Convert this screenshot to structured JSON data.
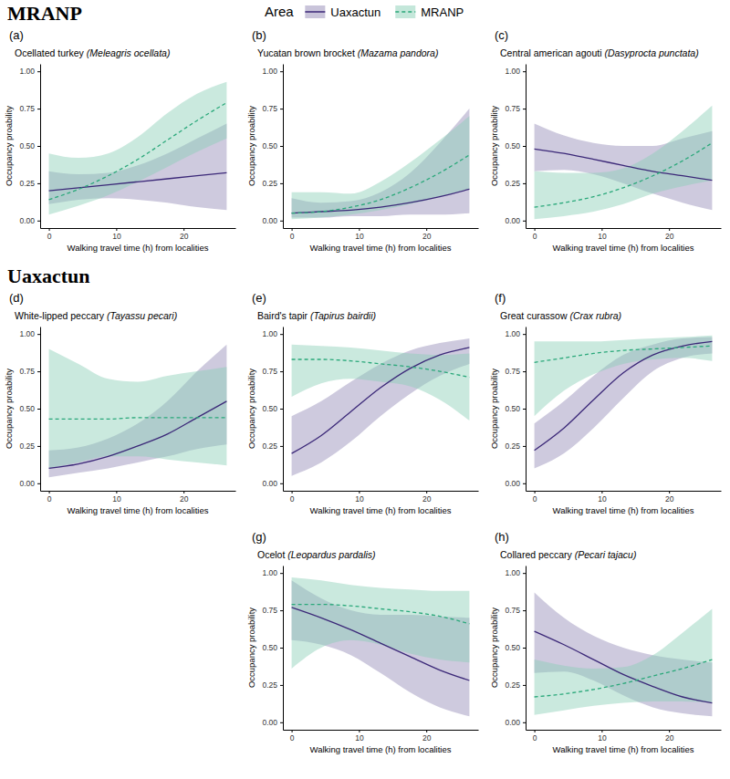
{
  "sections": [
    "MRANP",
    "Uaxactun"
  ],
  "legend_title": "Area",
  "chart_data": [
    {
      "type": "line",
      "panel_label": "(a)",
      "title": "Ocellated turkey (Meleagris ocellata)",
      "legend": "top",
      "x_label": "Walking travel time (h) from localities",
      "y_label": "Occupancy proability",
      "xlim": [
        -1.3,
        27.7
      ],
      "ylim": [
        -0.05,
        1.05
      ],
      "xticks": [
        0,
        10,
        20
      ],
      "yticks": [
        {
          "value": 0,
          "label": "0.00"
        },
        {
          "value": 0.25,
          "label": "0.25"
        },
        {
          "value": 0.5,
          "label": "0.50"
        },
        {
          "value": 0.75,
          "label": "0.75"
        },
        {
          "value": 1,
          "label": "1.00"
        }
      ],
      "grid": false,
      "x": [
        0,
        4.4,
        8.8,
        13.2,
        17.6,
        22,
        26.4
      ],
      "series": [
        {
          "name": "Uaxactun",
          "color": "#3b2878",
          "line_style": "solid",
          "values": [
            0.2,
            0.22,
            0.24,
            0.26,
            0.28,
            0.3,
            0.32
          ],
          "lower": [
            0.11,
            0.14,
            0.15,
            0.14,
            0.12,
            0.09,
            0.07
          ],
          "upper": [
            0.33,
            0.31,
            0.32,
            0.37,
            0.45,
            0.55,
            0.65
          ]
        },
        {
          "name": "MRANP",
          "color": "#2aa87a",
          "line_style": "dashed",
          "values": [
            0.14,
            0.21,
            0.3,
            0.41,
            0.54,
            0.67,
            0.79
          ],
          "lower": [
            0.04,
            0.1,
            0.17,
            0.26,
            0.36,
            0.46,
            0.55
          ],
          "upper": [
            0.45,
            0.42,
            0.45,
            0.56,
            0.72,
            0.85,
            0.93
          ]
        }
      ]
    },
    {
      "type": "line",
      "panel_label": "(b)",
      "title": "Yucatan brown brocket (Mazama pandora)",
      "x_label": "Walking travel time (h) from localities",
      "y_label": "Occupancy proability",
      "xlim": [
        -1.3,
        27.7
      ],
      "ylim": [
        -0.05,
        1.05
      ],
      "xticks": [
        0,
        10,
        20
      ],
      "yticks": [
        {
          "value": 0,
          "label": "0.00"
        },
        {
          "value": 0.25,
          "label": "0.25"
        },
        {
          "value": 0.5,
          "label": "0.50"
        },
        {
          "value": 0.75,
          "label": "0.75"
        },
        {
          "value": 1,
          "label": "1.00"
        }
      ],
      "grid": false,
      "x": [
        0,
        4.4,
        8.8,
        13.2,
        17.6,
        22,
        26.4
      ],
      "series": [
        {
          "name": "Uaxactun",
          "color": "#3b2878",
          "line_style": "solid",
          "values": [
            0.05,
            0.06,
            0.07,
            0.09,
            0.12,
            0.16,
            0.21
          ],
          "lower": [
            0.02,
            0.02,
            0.03,
            0.03,
            0.04,
            0.04,
            0.05
          ],
          "upper": [
            0.15,
            0.12,
            0.13,
            0.19,
            0.32,
            0.52,
            0.75
          ]
        },
        {
          "name": "MRANP",
          "color": "#2aa87a",
          "line_style": "dashed",
          "values": [
            0.05,
            0.06,
            0.09,
            0.14,
            0.22,
            0.32,
            0.44
          ],
          "lower": [
            0.01,
            0.02,
            0.04,
            0.07,
            0.11,
            0.16,
            0.21
          ],
          "upper": [
            0.19,
            0.19,
            0.18,
            0.26,
            0.39,
            0.54,
            0.7
          ]
        }
      ]
    },
    {
      "type": "line",
      "panel_label": "(c)",
      "title": "Central american agouti (Dasyprocta punctata)",
      "x_label": "Walking travel time (h) from localities",
      "y_label": "Occupancy proability",
      "xlim": [
        -1.3,
        27.7
      ],
      "ylim": [
        -0.05,
        1.05
      ],
      "xticks": [
        0,
        10,
        20
      ],
      "yticks": [
        {
          "value": 0,
          "label": "0.00"
        },
        {
          "value": 0.25,
          "label": "0.25"
        },
        {
          "value": 0.5,
          "label": "0.50"
        },
        {
          "value": 0.75,
          "label": "0.75"
        },
        {
          "value": 1,
          "label": "1.00"
        }
      ],
      "grid": false,
      "x": [
        0,
        4.4,
        8.8,
        13.2,
        17.6,
        22,
        26.4
      ],
      "series": [
        {
          "name": "Uaxactun",
          "color": "#3b2878",
          "line_style": "solid",
          "values": [
            0.48,
            0.45,
            0.41,
            0.37,
            0.33,
            0.3,
            0.27
          ],
          "lower": [
            0.33,
            0.34,
            0.31,
            0.25,
            0.18,
            0.12,
            0.07
          ],
          "upper": [
            0.65,
            0.57,
            0.52,
            0.5,
            0.5,
            0.55,
            0.6
          ]
        },
        {
          "name": "MRANP",
          "color": "#2aa87a",
          "line_style": "dashed",
          "values": [
            0.09,
            0.12,
            0.16,
            0.22,
            0.3,
            0.4,
            0.52
          ],
          "lower": [
            0.01,
            0.03,
            0.06,
            0.11,
            0.18,
            0.23,
            0.27
          ],
          "upper": [
            0.33,
            0.32,
            0.32,
            0.35,
            0.45,
            0.6,
            0.77
          ]
        }
      ]
    },
    {
      "type": "line",
      "panel_label": "(d)",
      "title": "White-lipped peccary (Tayassu pecari)",
      "x_label": "Walking travel time (h) from localities",
      "y_label": "Occupancy proability",
      "xlim": [
        -1.3,
        27.7
      ],
      "ylim": [
        -0.05,
        1.05
      ],
      "xticks": [
        0,
        10,
        20
      ],
      "yticks": [
        {
          "value": 0,
          "label": "0.00"
        },
        {
          "value": 0.25,
          "label": "0.25"
        },
        {
          "value": 0.5,
          "label": "0.50"
        },
        {
          "value": 0.75,
          "label": "0.75"
        },
        {
          "value": 1,
          "label": "1.00"
        }
      ],
      "grid": false,
      "x": [
        0,
        4.4,
        8.8,
        13.2,
        17.6,
        22,
        26.4
      ],
      "series": [
        {
          "name": "Uaxactun",
          "color": "#3b2878",
          "line_style": "solid",
          "values": [
            0.1,
            0.13,
            0.18,
            0.25,
            0.33,
            0.44,
            0.55
          ],
          "lower": [
            0.04,
            0.07,
            0.1,
            0.14,
            0.18,
            0.23,
            0.26
          ],
          "upper": [
            0.22,
            0.24,
            0.3,
            0.4,
            0.55,
            0.75,
            0.93
          ]
        },
        {
          "name": "MRANP",
          "color": "#2aa87a",
          "line_style": "dashed",
          "values": [
            0.43,
            0.43,
            0.43,
            0.44,
            0.44,
            0.44,
            0.44
          ],
          "lower": [
            0.1,
            0.14,
            0.18,
            0.18,
            0.16,
            0.14,
            0.12
          ],
          "upper": [
            0.9,
            0.8,
            0.7,
            0.68,
            0.72,
            0.75,
            0.78
          ]
        }
      ]
    },
    {
      "type": "line",
      "panel_label": "(e)",
      "title": "Baird's tapir (Tapirus bairdii)",
      "x_label": "Walking travel time (h) from localities",
      "y_label": "Occupancy proability",
      "xlim": [
        -1.3,
        27.7
      ],
      "ylim": [
        -0.05,
        1.05
      ],
      "xticks": [
        0,
        10,
        20
      ],
      "yticks": [
        {
          "value": 0,
          "label": "0.00"
        },
        {
          "value": 0.25,
          "label": "0.25"
        },
        {
          "value": 0.5,
          "label": "0.50"
        },
        {
          "value": 0.75,
          "label": "0.75"
        },
        {
          "value": 1,
          "label": "1.00"
        }
      ],
      "grid": false,
      "x": [
        0,
        4.4,
        8.8,
        13.2,
        17.6,
        22,
        26.4
      ],
      "series": [
        {
          "name": "Uaxactun",
          "color": "#3b2878",
          "line_style": "solid",
          "values": [
            0.2,
            0.32,
            0.48,
            0.64,
            0.77,
            0.86,
            0.91
          ],
          "lower": [
            0.05,
            0.14,
            0.28,
            0.45,
            0.6,
            0.72,
            0.8
          ],
          "upper": [
            0.45,
            0.55,
            0.68,
            0.8,
            0.89,
            0.94,
            0.97
          ]
        },
        {
          "name": "MRANP",
          "color": "#2aa87a",
          "line_style": "dashed",
          "values": [
            0.83,
            0.83,
            0.82,
            0.8,
            0.78,
            0.75,
            0.71
          ],
          "lower": [
            0.58,
            0.67,
            0.7,
            0.68,
            0.65,
            0.56,
            0.42
          ],
          "upper": [
            0.93,
            0.92,
            0.91,
            0.89,
            0.87,
            0.86,
            0.87
          ]
        }
      ]
    },
    {
      "type": "line",
      "panel_label": "(f)",
      "title": "Great curassow (Crax rubra)",
      "x_label": "Walking travel time (h) from localities",
      "y_label": "Occupancy proability",
      "xlim": [
        -1.3,
        27.7
      ],
      "ylim": [
        -0.05,
        1.05
      ],
      "xticks": [
        0,
        10,
        20
      ],
      "yticks": [
        {
          "value": 0,
          "label": "0.00"
        },
        {
          "value": 0.25,
          "label": "0.25"
        },
        {
          "value": 0.5,
          "label": "0.50"
        },
        {
          "value": 0.75,
          "label": "0.75"
        },
        {
          "value": 1,
          "label": "1.00"
        }
      ],
      "grid": false,
      "x": [
        0,
        4.4,
        8.8,
        13.2,
        17.6,
        22,
        26.4
      ],
      "series": [
        {
          "name": "Uaxactun",
          "color": "#3b2878",
          "line_style": "solid",
          "values": [
            0.22,
            0.37,
            0.56,
            0.74,
            0.86,
            0.92,
            0.95
          ],
          "lower": [
            0.1,
            0.2,
            0.37,
            0.57,
            0.75,
            0.84,
            0.87
          ],
          "upper": [
            0.4,
            0.55,
            0.72,
            0.86,
            0.93,
            0.97,
            0.98
          ]
        },
        {
          "name": "MRANP",
          "color": "#2aa87a",
          "line_style": "dashed",
          "values": [
            0.81,
            0.84,
            0.87,
            0.89,
            0.9,
            0.91,
            0.92
          ],
          "lower": [
            0.45,
            0.62,
            0.73,
            0.8,
            0.83,
            0.84,
            0.82
          ],
          "upper": [
            0.95,
            0.95,
            0.95,
            0.96,
            0.97,
            0.98,
            0.99
          ]
        }
      ]
    },
    {
      "type": "line",
      "panel_label": "(g)",
      "title": "Ocelot (Leopardus pardalis)",
      "x_label": "Walking travel time (h) from localities",
      "y_label": "Occupancy proability",
      "xlim": [
        -1.3,
        27.7
      ],
      "ylim": [
        -0.05,
        1.05
      ],
      "xticks": [
        0,
        10,
        20
      ],
      "yticks": [
        {
          "value": 0,
          "label": "0.00"
        },
        {
          "value": 0.25,
          "label": "0.25"
        },
        {
          "value": 0.5,
          "label": "0.50"
        },
        {
          "value": 0.75,
          "label": "0.75"
        },
        {
          "value": 1,
          "label": "1.00"
        }
      ],
      "grid": false,
      "x": [
        0,
        4.4,
        8.8,
        13.2,
        17.6,
        22,
        26.4
      ],
      "series": [
        {
          "name": "Uaxactun",
          "color": "#3b2878",
          "line_style": "solid",
          "values": [
            0.77,
            0.7,
            0.62,
            0.53,
            0.44,
            0.35,
            0.28
          ],
          "lower": [
            0.55,
            0.52,
            0.45,
            0.33,
            0.2,
            0.1,
            0.04
          ],
          "upper": [
            0.95,
            0.83,
            0.75,
            0.72,
            0.72,
            0.71,
            0.7
          ]
        },
        {
          "name": "MRANP",
          "color": "#2aa87a",
          "line_style": "dashed",
          "values": [
            0.79,
            0.79,
            0.78,
            0.76,
            0.74,
            0.71,
            0.66
          ],
          "lower": [
            0.36,
            0.5,
            0.55,
            0.52,
            0.46,
            0.42,
            0.4
          ],
          "upper": [
            0.97,
            0.95,
            0.92,
            0.9,
            0.89,
            0.88,
            0.88
          ]
        }
      ]
    },
    {
      "type": "line",
      "panel_label": "(h)",
      "title": "Collared peccary (Pecari tajacu)",
      "x_label": "Walking travel time (h) from localities",
      "y_label": "Occupancy proability",
      "xlim": [
        -1.3,
        27.7
      ],
      "ylim": [
        -0.05,
        1.05
      ],
      "xticks": [
        0,
        10,
        20
      ],
      "yticks": [
        {
          "value": 0,
          "label": "0.00"
        },
        {
          "value": 0.25,
          "label": "0.25"
        },
        {
          "value": 0.5,
          "label": "0.50"
        },
        {
          "value": 0.75,
          "label": "0.75"
        },
        {
          "value": 1,
          "label": "1.00"
        }
      ],
      "grid": false,
      "x": [
        0,
        4.4,
        8.8,
        13.2,
        17.6,
        22,
        26.4
      ],
      "series": [
        {
          "name": "Uaxactun",
          "color": "#3b2878",
          "line_style": "solid",
          "values": [
            0.61,
            0.52,
            0.42,
            0.32,
            0.24,
            0.17,
            0.13
          ],
          "lower": [
            0.33,
            0.34,
            0.28,
            0.18,
            0.1,
            0.06,
            0.04
          ],
          "upper": [
            0.87,
            0.7,
            0.58,
            0.5,
            0.45,
            0.42,
            0.4
          ]
        },
        {
          "name": "MRANP",
          "color": "#2aa87a",
          "line_style": "dashed",
          "values": [
            0.17,
            0.19,
            0.22,
            0.26,
            0.31,
            0.36,
            0.42
          ],
          "lower": [
            0.05,
            0.08,
            0.11,
            0.13,
            0.14,
            0.14,
            0.13
          ],
          "upper": [
            0.42,
            0.38,
            0.36,
            0.37,
            0.45,
            0.6,
            0.76
          ]
        }
      ]
    }
  ]
}
